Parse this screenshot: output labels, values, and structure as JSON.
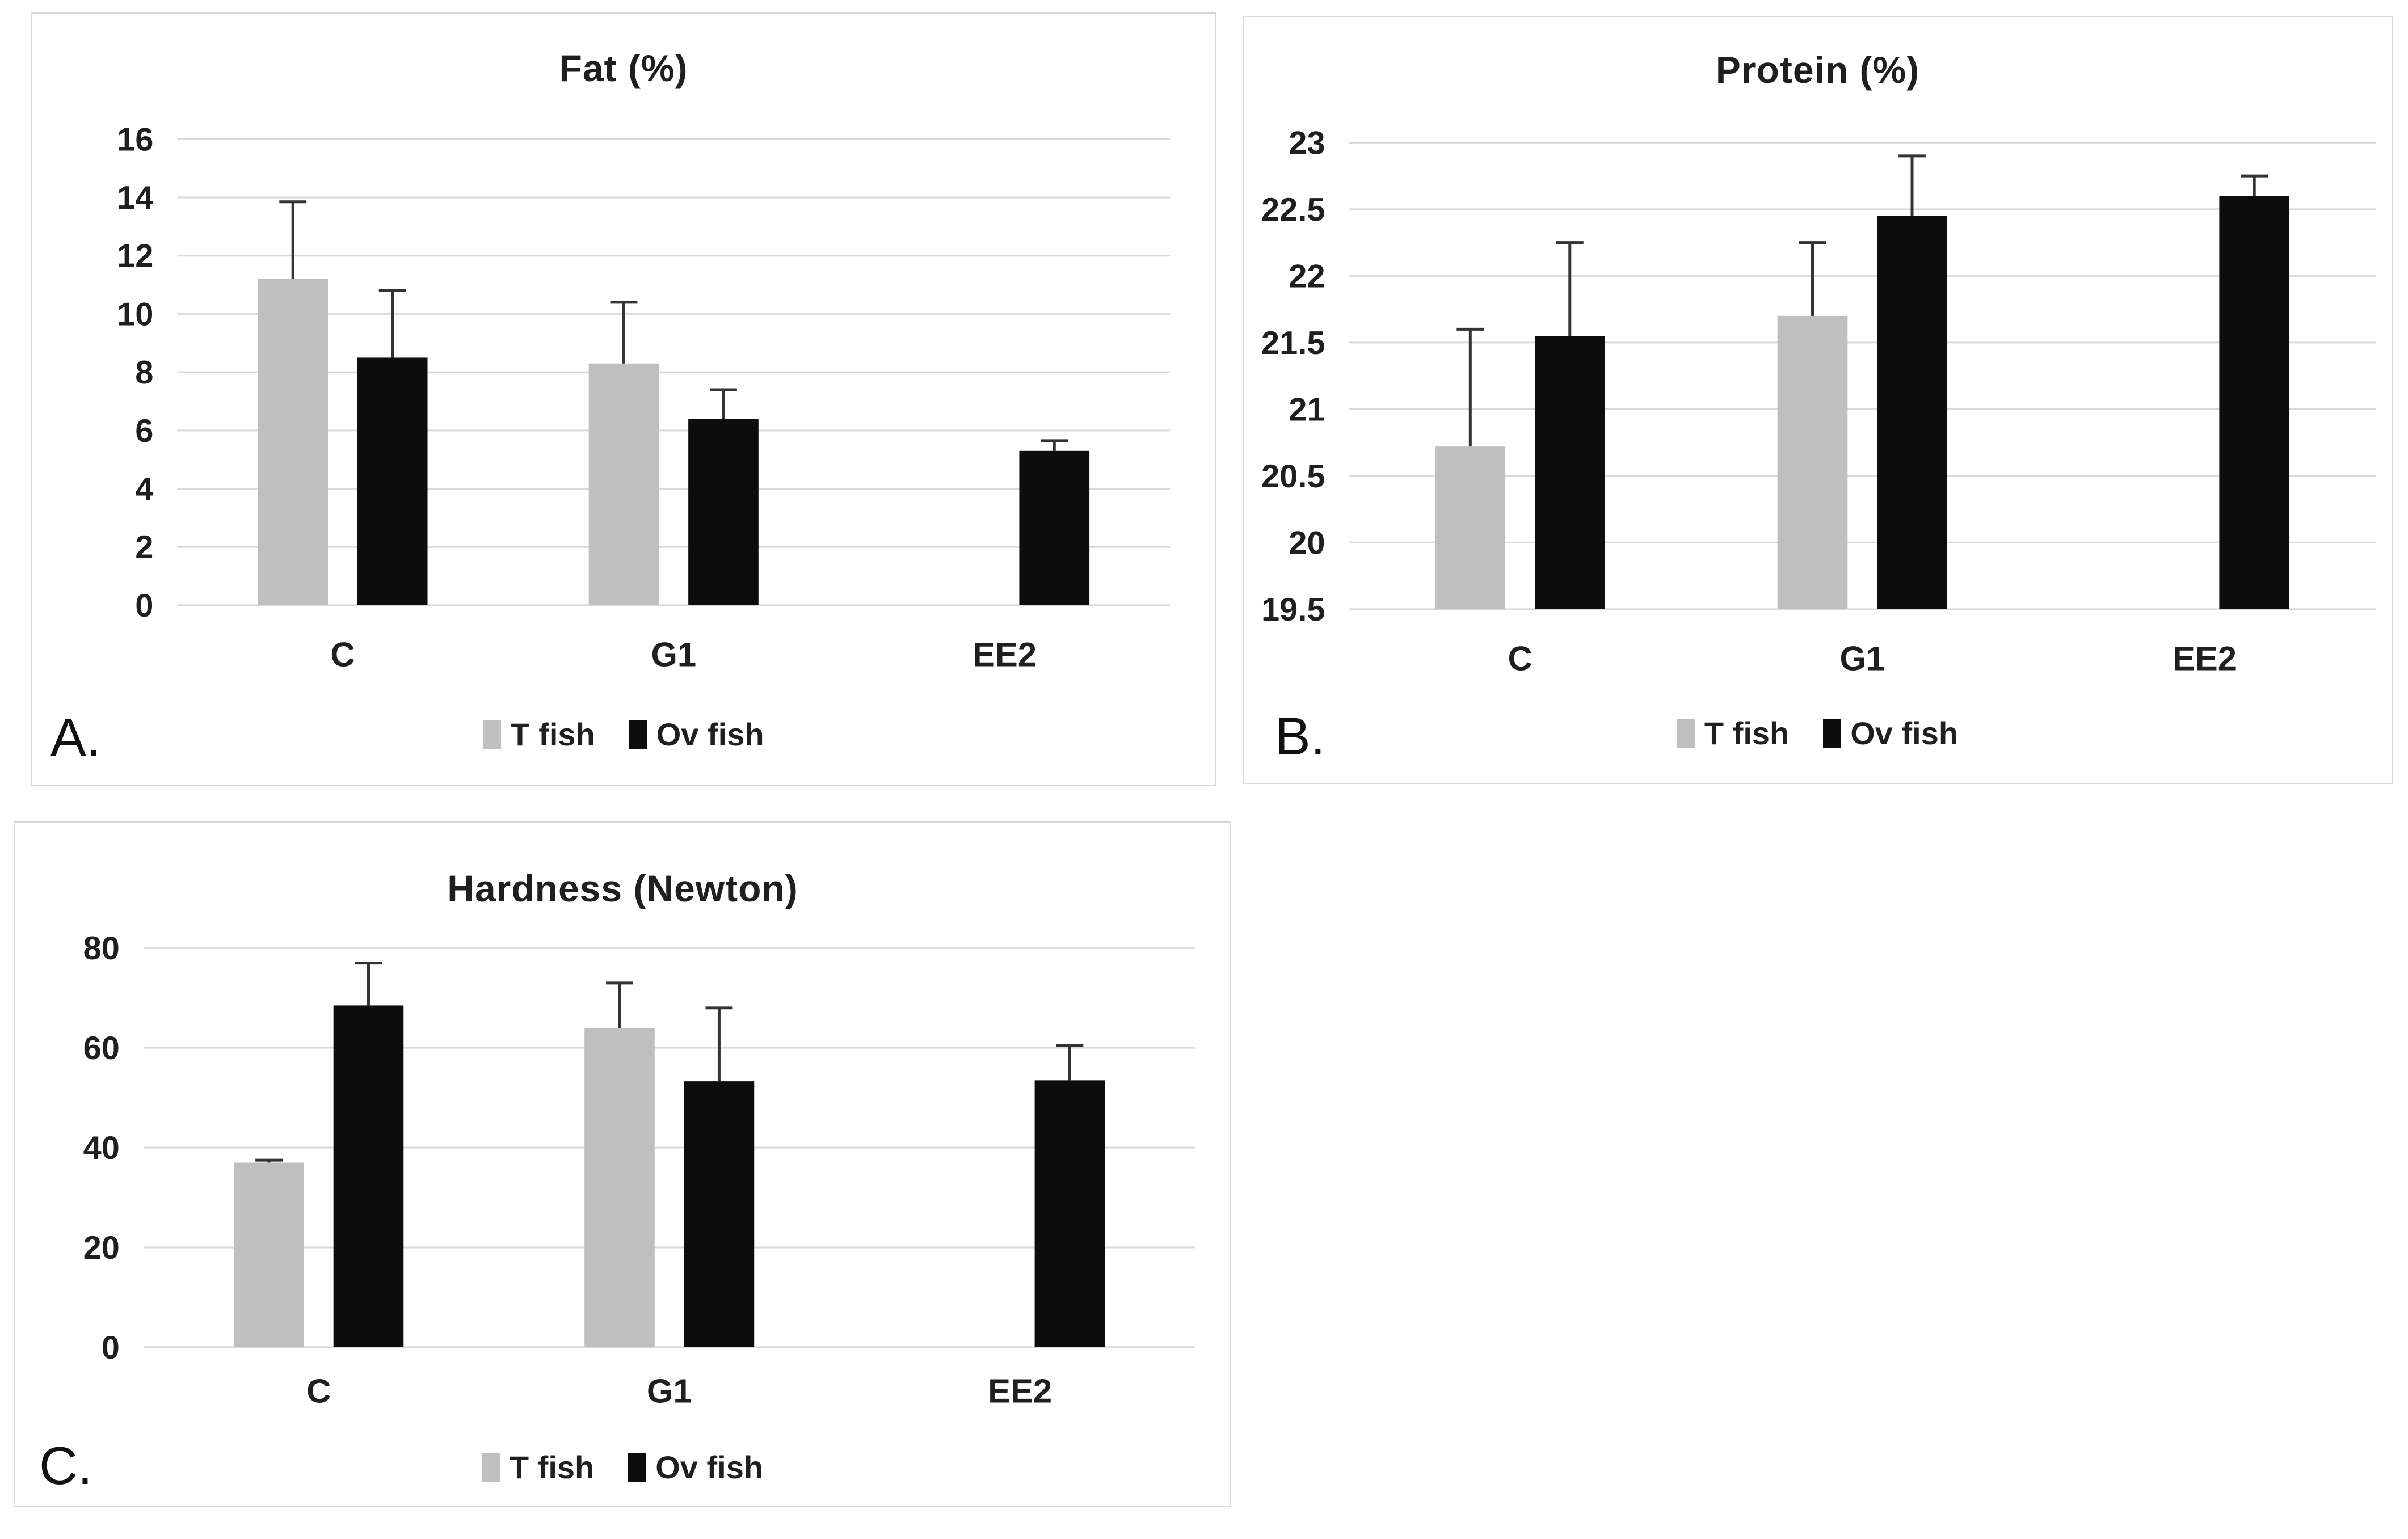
{
  "figure": {
    "background": "#ffffff",
    "description": "Three-panel grouped bar chart figure comparing T fish and Ov fish"
  },
  "colors": {
    "t_fish_series": "#bfbfbf",
    "ov_fish_series": "#0d0d0d",
    "gridline": "#d9d9d9",
    "panel_border": "#d8d8d8",
    "error_bar": "#333333",
    "text": "#1f1f1f"
  },
  "chart_data": [
    {
      "id": "A",
      "type": "bar",
      "panel_label": "A.",
      "title": "Fat (%)",
      "categories": [
        "C",
        "G1",
        "EE2"
      ],
      "ylim": [
        0,
        16
      ],
      "yticks": [
        0,
        2,
        4,
        6,
        8,
        10,
        12,
        14,
        16
      ],
      "ytick_labels": [
        "0",
        "2",
        "4",
        "6",
        "8",
        "10",
        "12",
        "14",
        "16"
      ],
      "grid": true,
      "legend_position": "bottom",
      "series": [
        {
          "name": "T fish",
          "color": "#bfbfbf",
          "values": [
            11.2,
            8.3,
            null
          ],
          "error_upper": [
            13.85,
            10.4,
            null
          ]
        },
        {
          "name": "Ov fish",
          "color": "#0d0d0d",
          "values": [
            8.5,
            6.4,
            5.3
          ],
          "error_upper": [
            10.8,
            7.4,
            5.65
          ]
        }
      ]
    },
    {
      "id": "B",
      "type": "bar",
      "panel_label": "B.",
      "title": "Protein (%)",
      "categories": [
        "C",
        "G1",
        "EE2"
      ],
      "ylim": [
        19.5,
        23
      ],
      "yticks": [
        19.5,
        20,
        20.5,
        21,
        21.5,
        22,
        22.5,
        23
      ],
      "ytick_labels": [
        "19.5",
        "20",
        "20.5",
        "21",
        "21.5",
        "22",
        "22.5",
        "23"
      ],
      "grid": true,
      "legend_position": "bottom",
      "series": [
        {
          "name": "T fish",
          "color": "#bfbfbf",
          "values": [
            20.72,
            21.7,
            null
          ],
          "error_upper": [
            21.6,
            22.25,
            null
          ]
        },
        {
          "name": "Ov fish",
          "color": "#0d0d0d",
          "values": [
            21.55,
            22.45,
            22.6
          ],
          "error_upper": [
            22.25,
            22.9,
            22.75
          ]
        }
      ]
    },
    {
      "id": "C",
      "type": "bar",
      "panel_label": "C.",
      "title": "Hardness (Newton)",
      "categories": [
        "C",
        "G1",
        "EE2"
      ],
      "ylim": [
        0,
        80
      ],
      "yticks": [
        0,
        20,
        40,
        60,
        80
      ],
      "ytick_labels": [
        "0",
        "20",
        "40",
        "60",
        "80"
      ],
      "grid": true,
      "legend_position": "bottom",
      "series": [
        {
          "name": "T fish",
          "color": "#bfbfbf",
          "values": [
            37,
            64,
            null
          ],
          "error_upper": [
            37.5,
            73,
            null
          ]
        },
        {
          "name": "Ov fish",
          "color": "#0d0d0d",
          "values": [
            68.5,
            53.3,
            53.5
          ],
          "error_upper": [
            77,
            68,
            60.5
          ]
        }
      ]
    }
  ]
}
